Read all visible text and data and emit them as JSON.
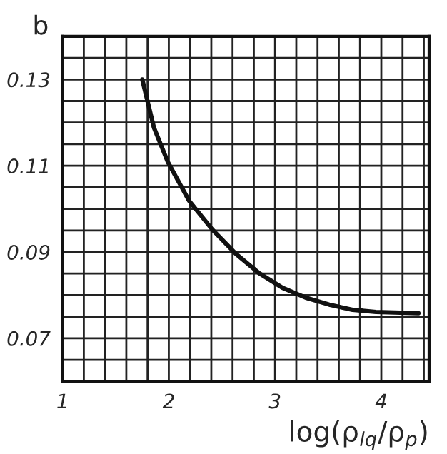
{
  "chart_data": {
    "type": "line",
    "xlabel": "log(ρ$_{lq}$/ρ$_{p}$)",
    "ylabel": "b",
    "x": [
      1.75,
      1.86,
      1.99,
      2.19,
      2.41,
      2.63,
      2.85,
      3.07,
      3.29,
      3.51,
      3.73,
      3.95,
      4.35
    ],
    "series": [
      {
        "color": "#111111",
        "values": [
          0.13,
          0.1188,
          0.1109,
          0.1019,
          0.0952,
          0.0896,
          0.0851,
          0.0817,
          0.0794,
          0.0778,
          0.0766,
          0.0761,
          0.0758
        ]
      }
    ],
    "xlim": [
      1,
      4.45
    ],
    "ylim": [
      0.06,
      0.14
    ],
    "xticks": [
      1,
      {
        "value": 1.2,
        "label": null
      },
      {
        "value": 1.4,
        "label": null
      },
      {
        "value": 1.6,
        "label": null
      },
      {
        "value": 1.8,
        "label": null
      },
      2,
      {
        "value": 2.2,
        "label": null
      },
      {
        "value": 2.4,
        "label": null
      },
      {
        "value": 2.6,
        "label": null
      },
      {
        "value": 2.8,
        "label": null
      },
      3,
      {
        "value": 3.2,
        "label": null
      },
      {
        "value": 3.4,
        "label": null
      },
      {
        "value": 3.6,
        "label": null
      },
      {
        "value": 3.8,
        "label": null
      },
      4,
      {
        "value": 4.2,
        "label": null
      },
      {
        "value": 4.4,
        "label": null
      }
    ],
    "yticks": [
      {
        "value": 0.065,
        "label": null
      },
      {
        "value": 0.07,
        "label": "0.07"
      },
      {
        "value": 0.075,
        "label": null
      },
      {
        "value": 0.08,
        "label": null
      },
      {
        "value": 0.085,
        "label": null
      },
      {
        "value": 0.09,
        "label": "0.09"
      },
      {
        "value": 0.095,
        "label": null
      },
      {
        "value": 0.1,
        "label": null
      },
      {
        "value": 0.105,
        "label": null
      },
      {
        "value": 0.11,
        "label": "0.11"
      },
      {
        "value": 0.115,
        "label": null
      },
      {
        "value": 0.12,
        "label": null
      },
      {
        "value": 0.125,
        "label": null
      },
      {
        "value": 0.13,
        "label": "0.13"
      },
      {
        "value": 0.135,
        "label": null
      }
    ],
    "grid": true,
    "marker": "none",
    "line_style": "solid"
  }
}
